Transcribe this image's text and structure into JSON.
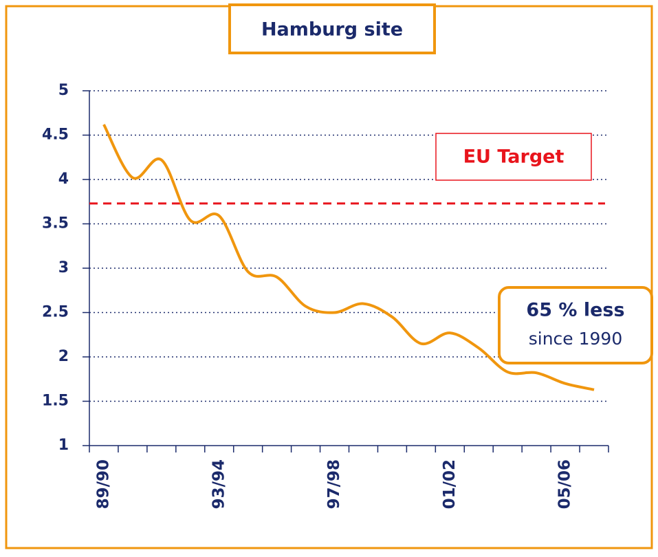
{
  "chart_data": {
    "type": "line",
    "title": "Hamburg site",
    "categories": [
      "89/90",
      null,
      null,
      null,
      "93/94",
      null,
      null,
      null,
      "97/98",
      null,
      null,
      null,
      "01/02",
      null,
      null,
      null,
      "05/06",
      null
    ],
    "series": [
      {
        "name": null,
        "color": "#f0960e",
        "values": [
          4.62,
          4.02,
          4.22,
          3.54,
          3.59,
          2.96,
          2.9,
          2.57,
          2.5,
          2.6,
          2.45,
          2.15,
          2.27,
          2.1,
          1.83,
          1.82,
          1.7,
          1.63
        ]
      }
    ],
    "ylim": [
      1,
      5
    ],
    "yticks": [
      1,
      1.5,
      2,
      2.5,
      3,
      3.5,
      4,
      4.5,
      5
    ],
    "grid": true,
    "target": {
      "label": "EU Target",
      "value": 3.73,
      "color": "#e8141c"
    },
    "annotation": {
      "headline": "65 % less",
      "text": "since 1990"
    }
  }
}
